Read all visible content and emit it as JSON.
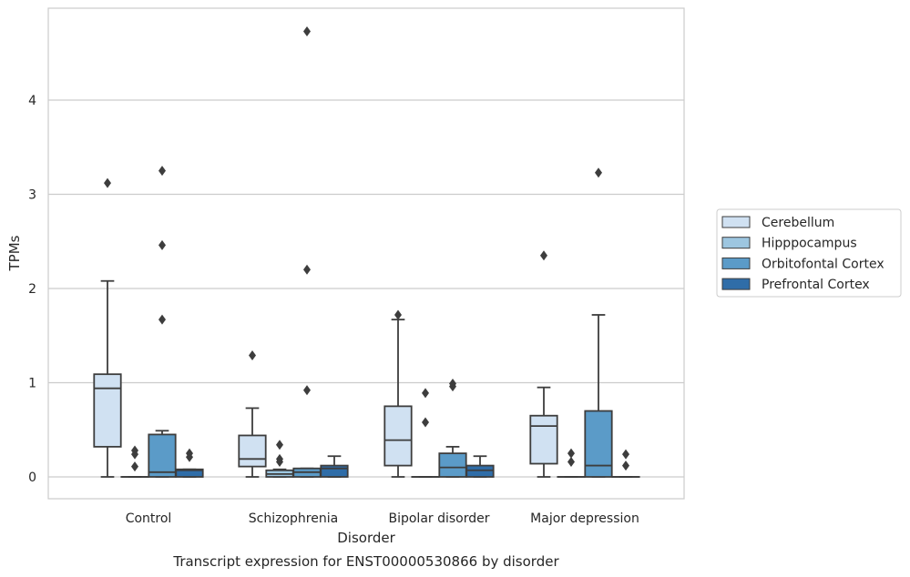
{
  "chart_data": {
    "type": "box",
    "title": "Transcript expression for ENST00000530866 by disorder",
    "xlabel": "Disorder",
    "ylabel": "TPMs",
    "ylim": [
      -0.23,
      4.98
    ],
    "yticks": [
      0,
      1,
      2,
      3,
      4
    ],
    "grid": "horizontal",
    "legend_position": "right",
    "categories": [
      "Control",
      "Schizophrenia",
      "Bipolar disorder",
      "Major depression"
    ],
    "series": [
      {
        "name": "Cerebellum",
        "color": "#d0e1f2",
        "boxes": [
          {
            "whislo": 0,
            "q1": 0.32,
            "med": 0.94,
            "q3": 1.09,
            "whishi": 2.08,
            "fliers": [
              3.12
            ]
          },
          {
            "whislo": 0,
            "q1": 0.11,
            "med": 0.19,
            "q3": 0.44,
            "whishi": 0.73,
            "fliers": [
              1.29
            ]
          },
          {
            "whislo": 0,
            "q1": 0.12,
            "med": 0.39,
            "q3": 0.75,
            "whishi": 1.67,
            "fliers": [
              1.72
            ]
          },
          {
            "whislo": 0,
            "q1": 0.14,
            "med": 0.54,
            "q3": 0.65,
            "whishi": 0.95,
            "fliers": [
              2.35
            ]
          }
        ]
      },
      {
        "name": "Hipppocampus",
        "color": "#9dc6e0",
        "boxes": [
          {
            "whislo": 0,
            "q1": 0,
            "med": 0,
            "q3": 0,
            "whishi": 0,
            "fliers": [
              0.11,
              0.24,
              0.28
            ]
          },
          {
            "whislo": 0,
            "q1": 0,
            "med": 0.03,
            "q3": 0.07,
            "whishi": 0.08,
            "fliers": [
              0.16,
              0.19,
              0.34
            ]
          },
          {
            "whislo": 0,
            "q1": 0,
            "med": 0,
            "q3": 0,
            "whishi": 0,
            "fliers": [
              0.58,
              0.89
            ]
          },
          {
            "whislo": 0,
            "q1": 0,
            "med": 0,
            "q3": 0,
            "whishi": 0,
            "fliers": [
              0.16,
              0.25
            ]
          }
        ]
      },
      {
        "name": "Orbitofontal Cortex",
        "color": "#5b9bc8",
        "boxes": [
          {
            "whislo": 0,
            "q1": 0,
            "med": 0.05,
            "q3": 0.45,
            "whishi": 0.49,
            "fliers": [
              1.67,
              2.46,
              3.25
            ]
          },
          {
            "whislo": 0,
            "q1": 0,
            "med": 0.05,
            "q3": 0.09,
            "whishi": 0.09,
            "fliers": [
              0.92,
              2.2,
              4.73
            ]
          },
          {
            "whislo": 0,
            "q1": 0,
            "med": 0.1,
            "q3": 0.25,
            "whishi": 0.32,
            "fliers": [
              0.96,
              0.99
            ]
          },
          {
            "whislo": 0,
            "q1": 0,
            "med": 0.12,
            "q3": 0.7,
            "whishi": 1.72,
            "fliers": [
              3.23
            ]
          }
        ]
      },
      {
        "name": "Prefrontal Cortex",
        "color": "#2f6da8",
        "boxes": [
          {
            "whislo": 0,
            "q1": 0,
            "med": 0.07,
            "q3": 0.08,
            "whishi": 0.08,
            "fliers": [
              0.21,
              0.25
            ]
          },
          {
            "whislo": 0,
            "q1": 0,
            "med": 0.09,
            "q3": 0.12,
            "whishi": 0.22,
            "fliers": []
          },
          {
            "whislo": 0,
            "q1": 0,
            "med": 0.07,
            "q3": 0.12,
            "whishi": 0.22,
            "fliers": []
          },
          {
            "whislo": 0,
            "q1": 0,
            "med": 0,
            "q3": 0,
            "whishi": 0,
            "fliers": [
              0.12,
              0.24
            ]
          }
        ]
      }
    ]
  }
}
